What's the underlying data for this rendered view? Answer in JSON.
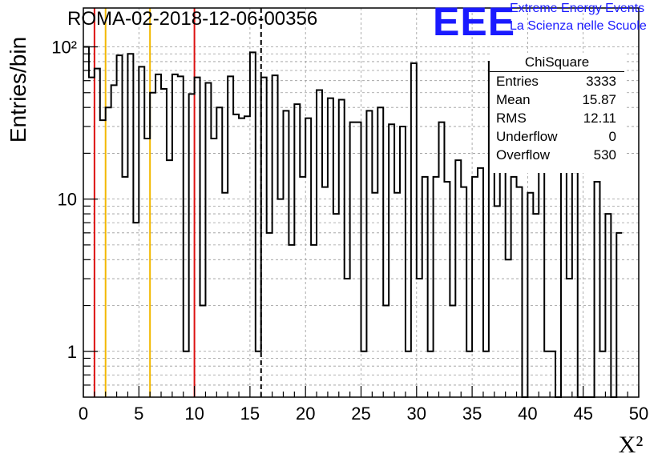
{
  "header": {
    "run_title": "ROMA-02-2018-12-06-00356",
    "logo_mark": "EEE",
    "logo_line1": "Extreme Energy Events",
    "logo_line2": "La Scienza nelle Scuole"
  },
  "stats": {
    "title": "ChiSquare",
    "rows": [
      {
        "label": "Entries",
        "value": "3333"
      },
      {
        "label": "Mean",
        "value": "15.87"
      },
      {
        "label": "RMS",
        "value": "12.11"
      },
      {
        "label": "Underflow",
        "value": "0"
      },
      {
        "label": "Overflow",
        "value": "530"
      }
    ]
  },
  "colors": {
    "histogram": "#000000",
    "red_lines": "#dd1111",
    "yellow_lines": "#f2b800",
    "grid": "#999999",
    "logo": "#1a1aff"
  },
  "chart_data": {
    "type": "histogram",
    "ylabel": "Entries/bin",
    "xlabel": "X²",
    "xlim": [
      0,
      50
    ],
    "ylim": [
      0.5,
      180
    ],
    "y_scale": "log",
    "grid": true,
    "bin_width": 0.5,
    "x_ticks": [
      "0",
      "5",
      "10",
      "15",
      "20",
      "25",
      "30",
      "35",
      "40",
      "45",
      "50"
    ],
    "y_ticks": [
      {
        "value": 1,
        "label": "1"
      },
      {
        "value": 10,
        "label": "10"
      },
      {
        "value": 100,
        "label": "10²"
      }
    ],
    "vertical_lines": [
      {
        "x": 1,
        "color": "red",
        "style": "solid"
      },
      {
        "x": 2,
        "color": "yellow",
        "style": "solid"
      },
      {
        "x": 6,
        "color": "yellow",
        "style": "solid"
      },
      {
        "x": 10,
        "color": "red",
        "style": "solid"
      },
      {
        "x": 16,
        "color": "black",
        "style": "dashed"
      }
    ],
    "counts": [
      100,
      63,
      72,
      33,
      40,
      56,
      88,
      14,
      90,
      7,
      74,
      25,
      50,
      66,
      53,
      18,
      66,
      64,
      1,
      49,
      63,
      2,
      58,
      25,
      40,
      11,
      64,
      36,
      34,
      35,
      92,
      1,
      63,
      6,
      65,
      10,
      38,
      5,
      42,
      14,
      34,
      5,
      52,
      12,
      46,
      8,
      45,
      3,
      32,
      32,
      1,
      38,
      11,
      40,
      2,
      31,
      11,
      30,
      1,
      78,
      3,
      14,
      1,
      14,
      32,
      13,
      2,
      18,
      12,
      1,
      14,
      16,
      1,
      80,
      9,
      19,
      4,
      14,
      12,
      0,
      11,
      8,
      19,
      1,
      1,
      0,
      17,
      3,
      15,
      0,
      0,
      0,
      13,
      1,
      8,
      0,
      6
    ]
  }
}
